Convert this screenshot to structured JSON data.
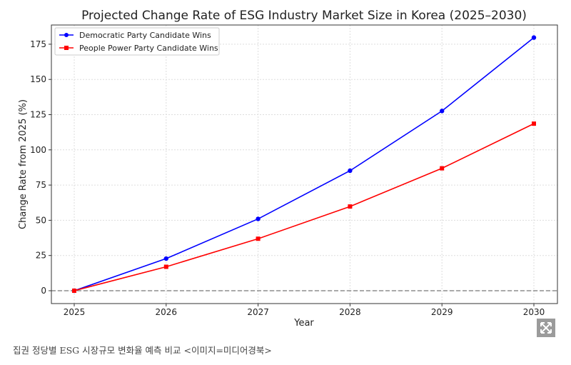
{
  "chart_data": {
    "type": "line",
    "title": "Projected Change Rate of ESG Industry Market Size in Korea (2025–2030)",
    "xlabel": "Year",
    "ylabel": "Change Rate from 2025 (%)",
    "x": [
      2025,
      2026,
      2027,
      2028,
      2029,
      2030
    ],
    "yticks": [
      0,
      25,
      50,
      75,
      100,
      125,
      150,
      175
    ],
    "ylim": [
      -9,
      188
    ],
    "grid": true,
    "legend": "top-left",
    "reference_line": 0,
    "series": [
      {
        "name": "Democratic Party Candidate Wins",
        "color": "#0000ff",
        "marker": "circle",
        "values": [
          0,
          22.8,
          51.0,
          85.2,
          127.6,
          179.7
        ]
      },
      {
        "name": "People Power Party Candidate Wins",
        "color": "#ff0000",
        "marker": "square",
        "values": [
          0,
          17.0,
          36.9,
          59.8,
          86.9,
          118.6
        ]
      }
    ]
  },
  "caption": "집권 정당별 ESG 시장규모 변화율 예측 비교 <이미지=미디어경북>",
  "expand_icon": "expand-icon"
}
